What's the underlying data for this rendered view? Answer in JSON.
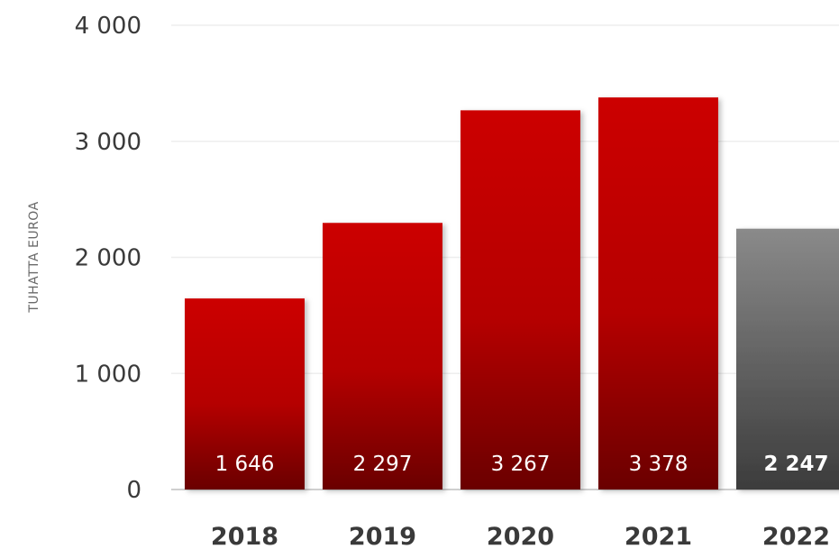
{
  "chart_data": {
    "type": "bar",
    "ylabel": "TUHATTA EUROA",
    "xlabel": "",
    "ylim": [
      0,
      4000
    ],
    "yticks": [
      0,
      1000,
      2000,
      3000,
      4000
    ],
    "ytick_labels": [
      "0",
      "1 000",
      "2 000",
      "3 000",
      "4 000"
    ],
    "grid": true,
    "categories": [
      "2018",
      "2019",
      "2020",
      "2021",
      "2022"
    ],
    "values": [
      1646,
      2297,
      3267,
      3378,
      2247
    ],
    "value_labels": [
      "1 646",
      "2 297",
      "3 267",
      "3 378",
      "2 247"
    ],
    "colors": [
      "#c40000",
      "#c40000",
      "#c40000",
      "#c40000",
      "#7a7a7a"
    ],
    "bold_labels": [
      false,
      false,
      false,
      false,
      true
    ]
  }
}
